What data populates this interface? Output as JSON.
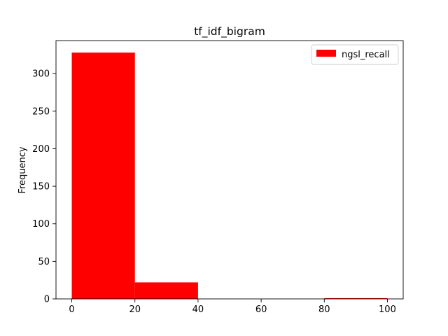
{
  "chart_data": {
    "type": "bar",
    "title": "tf_idf_bigram",
    "xlabel": "",
    "ylabel": "Frequency",
    "bins": [
      {
        "start": 0,
        "end": 20,
        "value": 328
      },
      {
        "start": 20,
        "end": 40,
        "value": 22
      },
      {
        "start": 40,
        "end": 60,
        "value": 0
      },
      {
        "start": 60,
        "end": 80,
        "value": 0
      },
      {
        "start": 80,
        "end": 100,
        "value": 1
      }
    ],
    "series": [
      {
        "name": "ngsl_recall",
        "color": "#ff0000"
      }
    ],
    "xlim": [
      -5,
      105
    ],
    "ylim": [
      0,
      344
    ],
    "xticks": [
      0,
      20,
      40,
      60,
      80,
      100
    ],
    "yticks": [
      0,
      50,
      100,
      150,
      200,
      250,
      300
    ],
    "grid": false,
    "legend_position": "top-right"
  }
}
